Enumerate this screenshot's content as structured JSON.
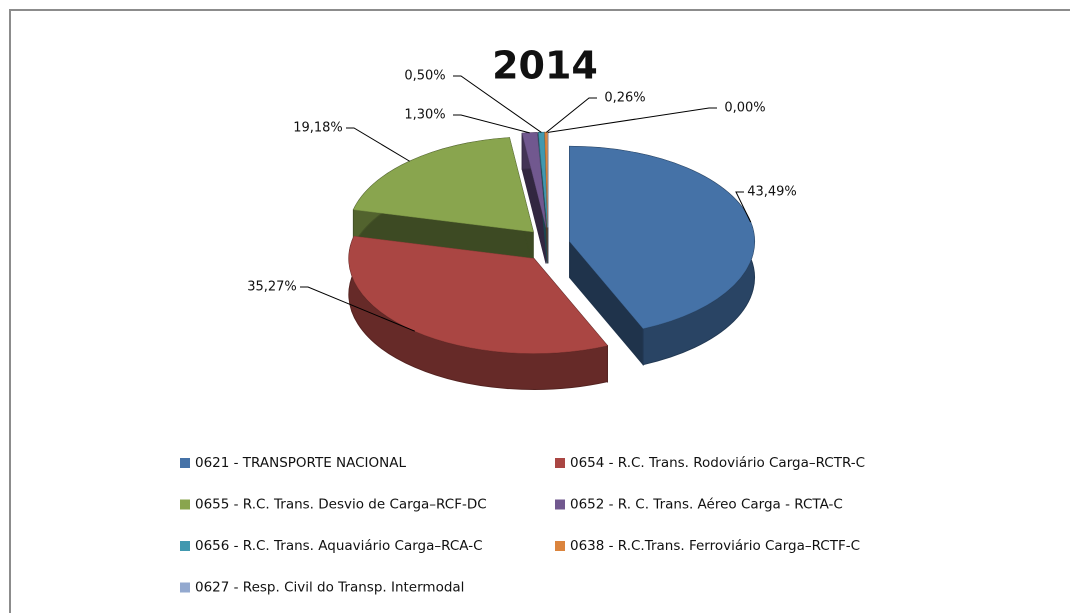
{
  "chart_data": {
    "type": "pie",
    "title": "2014",
    "categories": [
      "0621 - TRANSPORTE NACIONAL",
      "0654 - R.C. Trans. Rodoviário Carga–RCTR-C",
      "0655 - R.C. Trans. Desvio de Carga–RCF-DC",
      "0652 - R. C. Trans. Aéreo Carga - RCTA-C",
      "0656 - R.C. Trans. Aquaviário Carga–RCA-C",
      "0638 - R.C.Trans. Ferroviário Carga–RCTF-C",
      "0627 - Resp. Civil do Transp. Intermodal"
    ],
    "values": [
      43.49,
      35.27,
      19.18,
      1.3,
      0.5,
      0.26,
      0.0
    ],
    "value_labels": [
      "43,49%",
      "35,27%",
      "19,18%",
      "1,30%",
      "0,50%",
      "0,26%",
      "0,00%"
    ],
    "colors": [
      "#4572a7",
      "#aa4643",
      "#89a54e",
      "#71588f",
      "#4198af",
      "#db843d",
      "#93a9cf"
    ],
    "legend": "bottom"
  }
}
